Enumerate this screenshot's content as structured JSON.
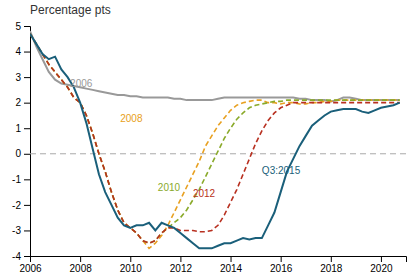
{
  "chart_data": {
    "type": "line",
    "title": "Percentage pts",
    "x": [
      2006.0,
      2006.25,
      2006.5,
      2006.75,
      2007.0,
      2007.25,
      2007.5,
      2007.75,
      2008.0,
      2008.25,
      2008.5,
      2008.75,
      2009.0,
      2009.25,
      2009.5,
      2009.75,
      2010.0,
      2010.25,
      2010.5,
      2010.75,
      2011.0,
      2011.25,
      2011.5,
      2011.75,
      2012.0,
      2012.25,
      2012.5,
      2012.75,
      2013.0,
      2013.25,
      2013.5,
      2013.75,
      2014.0,
      2014.25,
      2014.5,
      2014.75,
      2015.0,
      2015.25,
      2015.5,
      2015.75,
      2016.0,
      2016.25,
      2016.5,
      2016.75,
      2017.0,
      2017.25,
      2017.5,
      2017.75,
      2018.0,
      2018.25,
      2018.5,
      2018.75,
      2019.0,
      2019.25,
      2019.5,
      2019.75,
      2020.0,
      2020.25,
      2020.5,
      2020.75
    ],
    "series": [
      {
        "name": "2006",
        "color": "#999999",
        "line_style": "solid",
        "values": [
          4.8,
          4.2,
          3.7,
          3.2,
          2.9,
          2.75,
          2.7,
          2.65,
          2.6,
          2.55,
          2.5,
          2.45,
          2.4,
          2.35,
          2.3,
          2.3,
          2.25,
          2.25,
          2.2,
          2.2,
          2.2,
          2.2,
          2.2,
          2.15,
          2.15,
          2.1,
          2.1,
          2.1,
          2.1,
          2.1,
          2.15,
          2.2,
          2.2,
          2.2,
          2.2,
          2.2,
          2.2,
          2.2,
          2.2,
          2.2,
          2.2,
          2.2,
          2.2,
          2.15,
          2.15,
          2.1,
          2.1,
          2.1,
          2.05,
          2.1,
          2.2,
          2.2,
          2.15,
          2.1,
          2.1,
          2.1,
          2.1,
          2.1,
          2.1,
          2.1
        ]
      },
      {
        "name": "2008",
        "color": "#e8a020",
        "line_style": "dashed",
        "values": [
          4.7,
          4.3,
          3.9,
          3.5,
          3.2,
          2.9,
          2.6,
          2.2,
          2.0,
          1.5,
          0.8,
          0.0,
          -0.7,
          -1.5,
          -2.2,
          -2.7,
          -2.9,
          -3.1,
          -3.4,
          -3.7,
          -3.5,
          -3.2,
          -2.8,
          -2.3,
          -1.8,
          -1.3,
          -0.8,
          -0.3,
          0.3,
          0.7,
          1.1,
          1.4,
          1.7,
          1.9,
          2.0,
          2.05,
          2.1,
          2.1,
          2.0,
          2.0,
          1.95,
          2.0,
          2.0,
          1.95,
          1.95,
          2.0,
          2.0,
          2.05,
          2.05,
          2.1,
          2.1,
          2.1,
          2.1,
          2.1,
          2.1,
          2.1,
          2.1,
          2.1,
          2.1,
          2.1
        ]
      },
      {
        "name": "2010",
        "color": "#8aaa2a",
        "line_style": "dashed",
        "values": [
          4.7,
          4.3,
          3.9,
          3.5,
          3.2,
          2.9,
          2.6,
          2.2,
          2.0,
          1.5,
          0.8,
          0.0,
          -0.7,
          -1.5,
          -2.2,
          -2.7,
          -2.9,
          -3.1,
          -3.4,
          -3.5,
          -3.4,
          -3.1,
          -2.9,
          -2.7,
          -2.5,
          -2.2,
          -1.8,
          -1.4,
          -0.9,
          -0.4,
          0.1,
          0.6,
          1.0,
          1.35,
          1.6,
          1.8,
          1.9,
          1.95,
          2.0,
          2.05,
          2.05,
          2.1,
          2.1,
          2.1,
          2.1,
          2.1,
          2.1,
          2.1,
          2.1,
          2.1,
          2.1,
          2.1,
          2.1,
          2.1,
          2.1,
          2.1,
          2.1,
          2.1,
          2.1,
          2.1
        ]
      },
      {
        "name": "2012",
        "color": "#b83020",
        "line_style": "dashed",
        "values": [
          4.7,
          4.3,
          3.9,
          3.5,
          3.2,
          2.9,
          2.6,
          2.2,
          2.0,
          1.5,
          0.8,
          0.0,
          -0.7,
          -1.5,
          -2.2,
          -2.7,
          -2.9,
          -3.1,
          -3.4,
          -3.5,
          -3.4,
          -3.1,
          -2.9,
          -2.9,
          -3.0,
          -3.0,
          -3.0,
          -3.05,
          -3.05,
          -3.0,
          -2.8,
          -2.4,
          -1.9,
          -1.4,
          -0.8,
          -0.2,
          0.4,
          0.9,
          1.3,
          1.6,
          1.8,
          1.9,
          2.0,
          2.0,
          2.0,
          2.0,
          2.0,
          2.0,
          2.0,
          2.0,
          2.0,
          2.0,
          2.0,
          2.0,
          2.0,
          2.0,
          2.0,
          2.0,
          2.0,
          2.0
        ]
      },
      {
        "name": "Q3:2015",
        "color": "#1a5f7a",
        "line_style": "solid",
        "values": [
          4.7,
          4.3,
          3.9,
          3.7,
          3.8,
          3.3,
          3.0,
          2.6,
          2.0,
          1.2,
          0.2,
          -0.8,
          -1.5,
          -2.0,
          -2.5,
          -2.8,
          -2.9,
          -2.8,
          -2.8,
          -2.7,
          -3.0,
          -2.7,
          -2.8,
          -2.9,
          -3.1,
          -3.3,
          -3.5,
          -3.7,
          -3.7,
          -3.7,
          -3.6,
          -3.5,
          -3.5,
          -3.4,
          -3.3,
          -3.35,
          -3.3,
          -3.3,
          -2.8,
          -2.3,
          -1.5,
          -0.7,
          -0.2,
          0.3,
          0.7,
          1.1,
          1.3,
          1.5,
          1.65,
          1.7,
          1.75,
          1.75,
          1.75,
          1.65,
          1.6,
          1.7,
          1.8,
          1.85,
          1.9,
          2.0
        ]
      }
    ],
    "annotations": [
      {
        "text": "2006",
        "x": 2007.6,
        "y": 2.72,
        "color": "#999999"
      },
      {
        "text": "2008",
        "x": 2009.6,
        "y": 1.35,
        "color": "#e8a020"
      },
      {
        "text": "2010",
        "x": 2011.1,
        "y": -1.35,
        "color": "#8aaa2a"
      },
      {
        "text": "2012",
        "x": 2012.5,
        "y": -1.6,
        "color": "#b83020"
      },
      {
        "text": "Q3:2015",
        "x": 2015.25,
        "y": -0.7,
        "color": "#1a5f7a"
      }
    ],
    "xlim": [
      2006.0,
      2021.0
    ],
    "ylim": [
      -4,
      5
    ],
    "xticks": [
      2006,
      2008,
      2010,
      2012,
      2014,
      2016,
      2018,
      2020
    ],
    "yticks": [
      -4,
      -3,
      -2,
      -1,
      0,
      1,
      2,
      3,
      4,
      5
    ],
    "grid": false
  }
}
